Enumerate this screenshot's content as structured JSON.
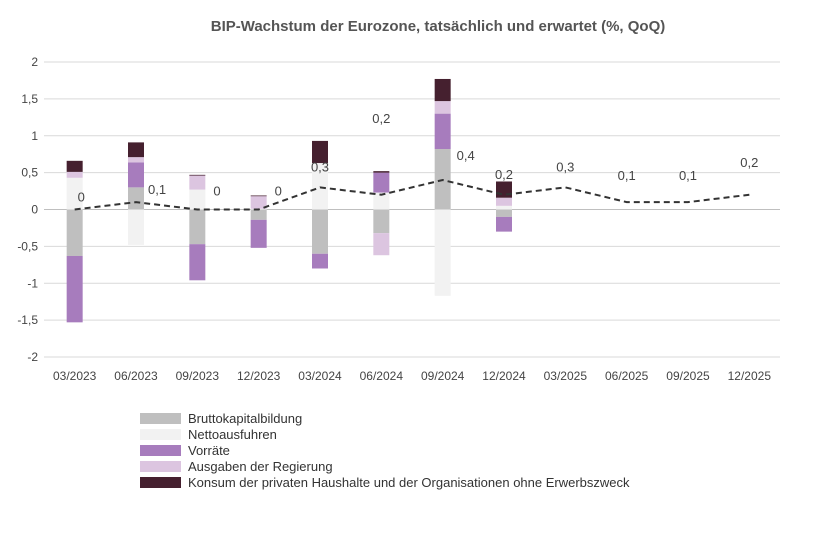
{
  "chart_data": {
    "type": "bar",
    "stacked": true,
    "title": "BIP-Wachstum der Eurozone, tatsächlich und erwartet (%, QoQ)",
    "xlabel": "",
    "ylabel": "",
    "ylim": [
      -2,
      2
    ],
    "yticks": [
      "-2",
      "-1,5",
      "-1",
      "-0,5",
      "0",
      "0,5",
      "1",
      "1,5",
      "2"
    ],
    "ytick_values": [
      -2,
      -1.5,
      -1,
      -0.5,
      0,
      0.5,
      1,
      1.5,
      2
    ],
    "grid": true,
    "legend_position": "bottom-left",
    "categories": [
      "03/2023",
      "06/2023",
      "09/2023",
      "12/2023",
      "03/2024",
      "06/2024",
      "09/2024",
      "12/2024",
      "03/2025",
      "06/2025",
      "09/2025",
      "12/2025"
    ],
    "series": [
      {
        "name": "Bruttokapitalbildung",
        "color": "#bfbfbf",
        "values": [
          -0.63,
          0.3,
          -0.47,
          -0.14,
          -0.6,
          -0.32,
          0.82,
          -0.1,
          null,
          null,
          null,
          null
        ]
      },
      {
        "name": "Nettoausfuhren",
        "color": "#f2f2f2",
        "values": [
          0.43,
          -0.48,
          0.27,
          0.01,
          0.63,
          0.23,
          -1.17,
          0.05,
          null,
          null,
          null,
          null
        ]
      },
      {
        "name": "Vorräte",
        "color": "#a77cbd",
        "values": [
          -0.9,
          0.34,
          -0.49,
          -0.38,
          -0.2,
          0.27,
          0.48,
          -0.2,
          null,
          null,
          null,
          null
        ]
      },
      {
        "name": "Ausgaben der Regierung",
        "color": "#dcc5e0",
        "values": [
          0.08,
          0.07,
          0.19,
          0.17,
          0.0,
          -0.3,
          0.17,
          0.11,
          null,
          null,
          null,
          null
        ]
      },
      {
        "name": "Konsum der privaten Haushalte und der Organisationen ohne Erwerbszweck",
        "color": "#45202f",
        "values": [
          0.15,
          0.2,
          0.01,
          0.01,
          0.3,
          0.02,
          0.3,
          0.22,
          null,
          null,
          null,
          null
        ]
      }
    ],
    "line": {
      "style": "dashed",
      "color": "#333333",
      "values": [
        0,
        0.1,
        0,
        0,
        0.3,
        0.2,
        0.4,
        0.2,
        0.3,
        0.1,
        0.1,
        0.2
      ],
      "labels": [
        "0",
        "0,1",
        "0",
        "0",
        "0,3",
        "0,2",
        "0,4",
        "0,2",
        "0,3",
        "0,1",
        "0,1",
        "0,2"
      ]
    }
  }
}
